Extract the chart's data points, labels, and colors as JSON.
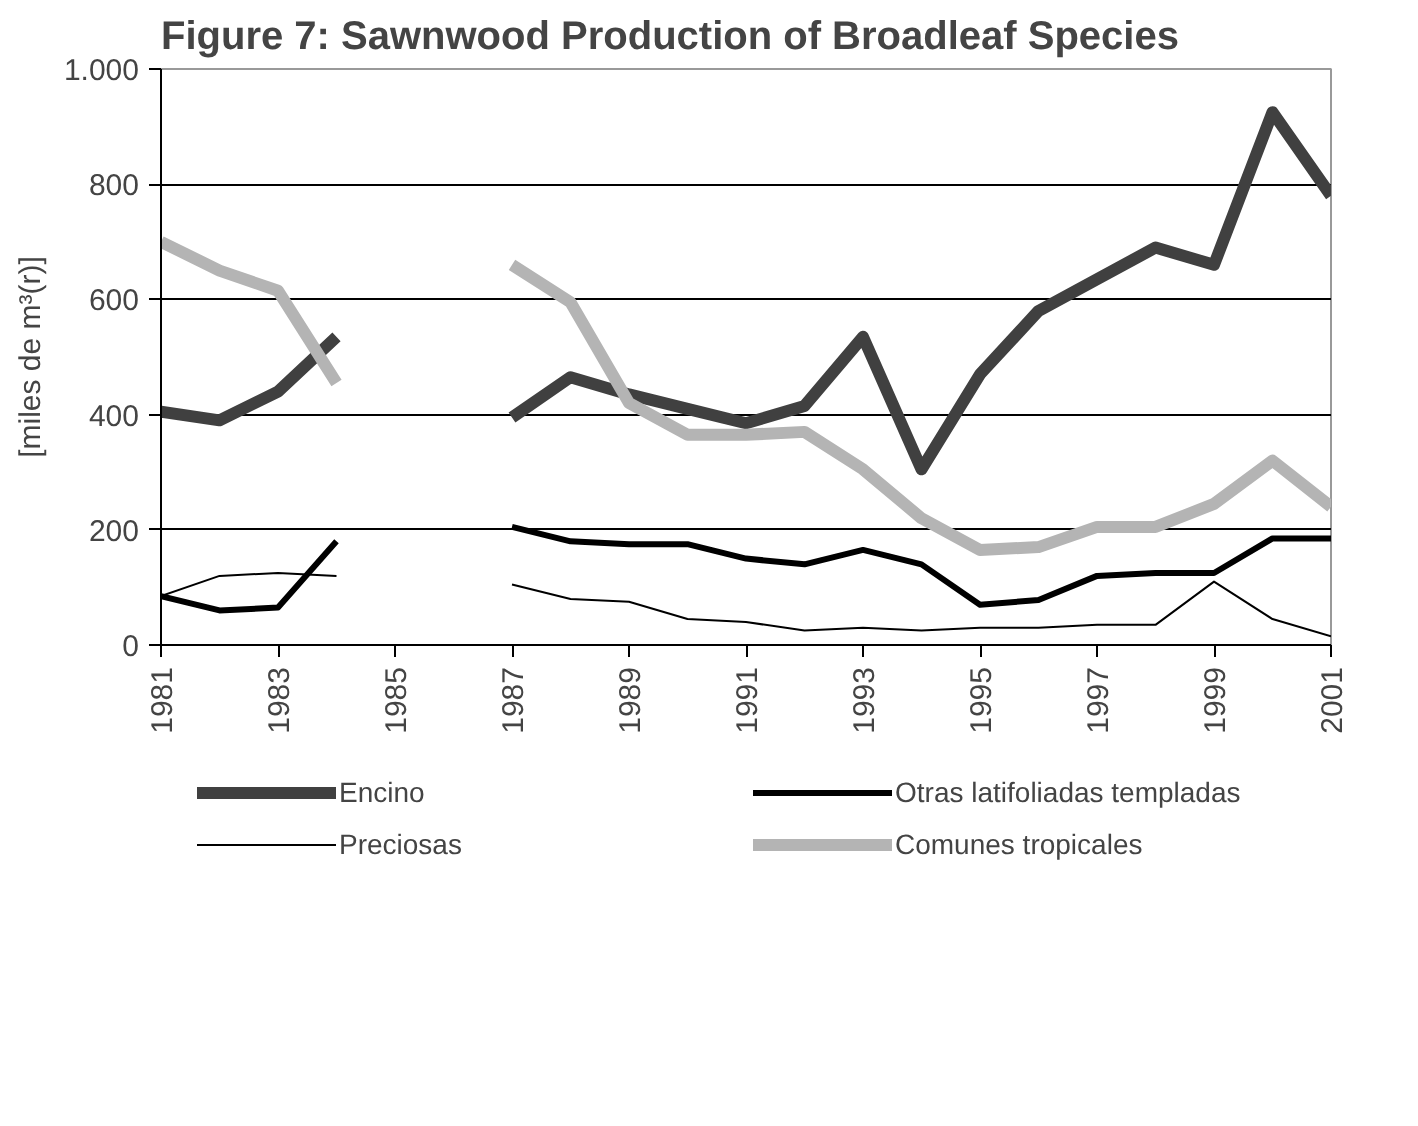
{
  "chart_data": {
    "type": "line",
    "title": "Figure 7: Sawnwood Production of Broadleaf Species",
    "ylabel": "[miles de m³(r)]",
    "x": [
      1981,
      1982,
      1983,
      1984,
      1985,
      1986,
      1987,
      1988,
      1989,
      1990,
      1991,
      1992,
      1993,
      1994,
      1995,
      1996,
      1997,
      1998,
      1999,
      2000,
      2001
    ],
    "xlim": [
      1981,
      2001
    ],
    "xticks": [
      1981,
      1983,
      1985,
      1987,
      1989,
      1991,
      1993,
      1995,
      1997,
      1999,
      2001
    ],
    "ylim": [
      0,
      1000
    ],
    "yticks": [
      0,
      200,
      400,
      600,
      800,
      {
        "value": 1000,
        "label": "1.000"
      }
    ],
    "grid": "y",
    "legend": "bottom",
    "series": [
      {
        "name": "Encino",
        "color": "#404040",
        "values": [
          405,
          390,
          440,
          535,
          null,
          null,
          395,
          465,
          435,
          410,
          385,
          415,
          535,
          305,
          470,
          580,
          635,
          690,
          660,
          925,
          780
        ]
      },
      {
        "name": "Otras latifoliadas templadas",
        "color": "#000000",
        "values": [
          85,
          60,
          65,
          180,
          null,
          null,
          205,
          180,
          175,
          175,
          150,
          140,
          165,
          140,
          70,
          78,
          120,
          125,
          125,
          185,
          185
        ]
      },
      {
        "name": "Preciosas",
        "color": "#000000",
        "values": [
          85,
          120,
          125,
          120,
          null,
          null,
          105,
          80,
          75,
          45,
          40,
          25,
          30,
          25,
          30,
          30,
          35,
          35,
          110,
          45,
          15
        ]
      },
      {
        "name": "Comunes tropicales",
        "color": "#b4b4b4",
        "values": [
          700,
          650,
          615,
          455,
          null,
          null,
          660,
          595,
          420,
          365,
          365,
          370,
          305,
          220,
          165,
          170,
          205,
          205,
          245,
          320,
          240
        ]
      }
    ]
  }
}
